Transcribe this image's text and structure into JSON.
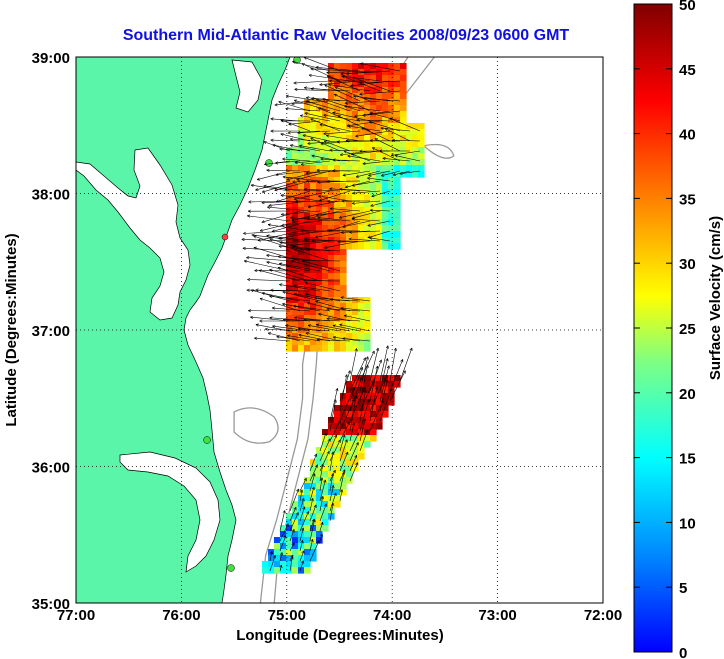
{
  "title": "Southern Mid-Atlantic Raw Velocities 2008/09/23 0600 GMT",
  "axes": {
    "xlabel": "Longitude (Degrees:Minutes)",
    "ylabel": "Latitude (Degrees:Minutes)",
    "xticks": [
      "77:00",
      "76:00",
      "75:00",
      "74:00",
      "73:00",
      "72:00"
    ],
    "yticks": [
      "39:00",
      "38:00",
      "37:00",
      "36:00",
      "35:00"
    ],
    "xlim": [
      -77,
      -72
    ],
    "ylim": [
      35,
      39
    ],
    "grid": "dotted"
  },
  "colorbar": {
    "label": "Surface Velocity (cm/s)",
    "ticks": [
      "50",
      "45",
      "40",
      "35",
      "30",
      "25",
      "20",
      "15",
      "10",
      "5",
      "0"
    ],
    "range": [
      0,
      50
    ],
    "colormap": "jet"
  },
  "colors": {
    "land": "#5af5a8",
    "title": "#1010e0",
    "bathymetry": "#999999",
    "coast": "#000000"
  },
  "regions": [
    {
      "name": "northern-high-velocity-field",
      "lon_range": [
        -75.0,
        -73.6
      ],
      "lat_range": [
        36.85,
        38.95
      ],
      "speed_range_cms": [
        15,
        50
      ]
    },
    {
      "name": "southern-shelf-break-field",
      "lon_range": [
        -75.15,
        -74.1
      ],
      "lat_range": [
        35.2,
        36.65
      ],
      "speed_range_cms": [
        5,
        45
      ]
    }
  ]
}
